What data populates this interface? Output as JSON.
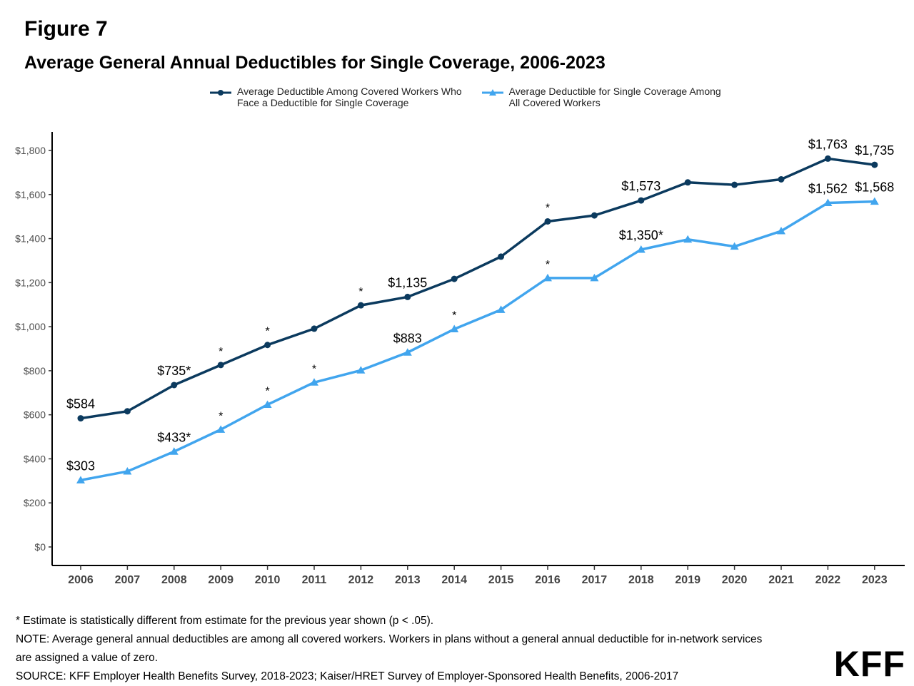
{
  "header": {
    "figure_label": "Figure 7",
    "title": "Average General Annual Deductibles for Single Coverage, 2006-2023"
  },
  "legend": {
    "items": [
      {
        "label": "Average Deductible Among Covered Workers Who\nFace a Deductible for Single Coverage",
        "color": "#0b3a5e",
        "marker": "circle-icon"
      },
      {
        "label": "Average Deductible for Single Coverage Among\nAll Covered Workers",
        "color": "#41a5ee",
        "marker": "triangle-icon"
      }
    ]
  },
  "chart_data": {
    "type": "line",
    "title": "Average General Annual Deductibles for Single Coverage, 2006-2023",
    "x": [
      2006,
      2007,
      2008,
      2009,
      2010,
      2011,
      2012,
      2013,
      2014,
      2015,
      2016,
      2017,
      2018,
      2019,
      2020,
      2021,
      2022,
      2023
    ],
    "ylim": [
      0,
      1900
    ],
    "yticks": [
      0,
      200,
      400,
      600,
      800,
      1000,
      1200,
      1400,
      1600,
      1800
    ],
    "ytick_labels": [
      "$0",
      "$200",
      "$400",
      "$600",
      "$800",
      "$1,000",
      "$1,200",
      "$1,400",
      "$1,600",
      "$1,800"
    ],
    "grid": false,
    "legend_position": "top",
    "series": [
      {
        "name": "Average Deductible Among Covered Workers Who Face a Deductible for Single Coverage",
        "color": "#0b3a5e",
        "marker": "circle",
        "values": [
          584,
          616,
          735,
          826,
          917,
          991,
          1097,
          1135,
          1217,
          1318,
          1478,
          1505,
          1573,
          1655,
          1644,
          1669,
          1763,
          1735
        ],
        "labels": {
          "2006": "$584",
          "2008": "$735*",
          "2013": "$1,135",
          "2018": "$1,573",
          "2022": "$1,763",
          "2023": "$1,735"
        },
        "asterisks": [
          2009,
          2010,
          2012,
          2016
        ]
      },
      {
        "name": "Average Deductible for Single Coverage Among All Covered Workers",
        "color": "#41a5ee",
        "marker": "triangle",
        "values": [
          303,
          343,
          433,
          533,
          646,
          747,
          802,
          883,
          989,
          1077,
          1221,
          1221,
          1350,
          1396,
          1364,
          1434,
          1562,
          1568
        ],
        "labels": {
          "2006": "$303",
          "2008": "$433*",
          "2013": "$883",
          "2018": "$1,350*",
          "2022": "$1,562",
          "2023": "$1,568"
        },
        "asterisks": [
          2009,
          2010,
          2011,
          2014,
          2016
        ]
      }
    ]
  },
  "notes": {
    "asterisk_note": "* Estimate is statistically different from estimate for the previous year shown (p < .05).",
    "note_line1": "NOTE: Average general annual deductibles are among all covered workers. Workers in plans without a general annual deductible for in-network services",
    "note_line2": "are assigned a value of zero.",
    "source": "SOURCE: KFF Employer Health Benefits Survey, 2018-2023; Kaiser/HRET Survey of Employer-Sponsored Health Benefits, 2006-2017"
  },
  "logo": {
    "text": "KFF"
  }
}
